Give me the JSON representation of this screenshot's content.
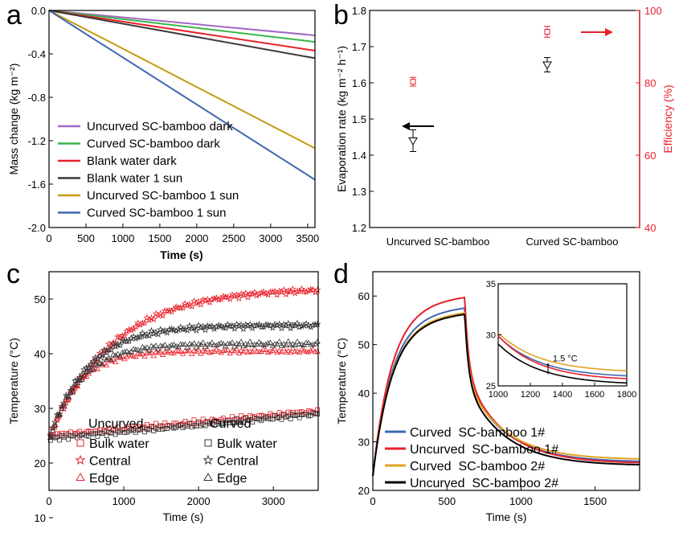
{
  "chart_data": [
    {
      "panel": "a",
      "type": "line",
      "xlabel": "Time (s)",
      "ylabel": "Mass change (kg m⁻²)",
      "xlim": [
        0,
        3600
      ],
      "ylim": [
        -2.0,
        0.0
      ],
      "xticks": [
        0,
        500,
        1000,
        1500,
        2000,
        2500,
        3000,
        3500
      ],
      "xtick_labels": [
        "0",
        "500",
        "1000",
        "1500",
        "2000",
        "2500",
        "3000",
        "3500"
      ],
      "yticks": [
        0,
        -0.4,
        -0.8,
        -1.2,
        -1.6,
        -2.0
      ],
      "ytick_labels": [
        "0.0",
        "-0.4",
        "-0.8",
        "-1.2",
        "-1.6",
        "-2.0"
      ],
      "legend_position": "bottom-left",
      "series": [
        {
          "name": "Uncurved SC-bamboo dark",
          "color": "#a367c6",
          "x": [
            0,
            3600
          ],
          "y": [
            0,
            -0.23
          ]
        },
        {
          "name": "Curved SC-bamboo dark",
          "color": "#39b54a",
          "x": [
            0,
            3600
          ],
          "y": [
            0,
            -0.29
          ]
        },
        {
          "name": "Blank water dark",
          "color": "#e8202a",
          "x": [
            0,
            3600
          ],
          "y": [
            0,
            -0.37
          ]
        },
        {
          "name": "Blank water 1 sun",
          "color": "#3a3a3a",
          "x": [
            0,
            3600
          ],
          "y": [
            0,
            -0.44
          ]
        },
        {
          "name": "Uncurved SC-bamboo 1 sun",
          "color": "#c59a13",
          "x": [
            0,
            3600
          ],
          "y": [
            0,
            -1.27
          ]
        },
        {
          "name": "Curved SC-bamboo 1 sun",
          "color": "#3f68b1",
          "x": [
            0,
            3600
          ],
          "y": [
            0,
            -1.56
          ]
        }
      ]
    },
    {
      "panel": "b",
      "type": "scatter",
      "categories": [
        "Uncurved SC-bamboo",
        "Curved SC-bamboo"
      ],
      "ylabel": "Evaporation rate (kg m⁻² h⁻¹)",
      "ylabel_right": "Efficiency (%)",
      "ylim": [
        1.2,
        1.8
      ],
      "yticks_labels": [
        "1.2",
        "1.3",
        "1.4",
        "1.5",
        "1.6",
        "1.7",
        "1.8"
      ],
      "ylim_right": [
        40,
        100
      ],
      "yticks_right_labels": [
        "40",
        "60",
        "80",
        "100"
      ],
      "right_axis_color": "#e8202a",
      "evaporation_rate": {
        "values": [
          1.44,
          1.65
        ],
        "errors": [
          0.03,
          0.02
        ],
        "color": "#000000"
      },
      "efficiency": {
        "values": [
          80.3,
          94.1
        ],
        "errors": [
          1.2,
          1.5
        ],
        "color": "#e8202a"
      }
    },
    {
      "panel": "c",
      "type": "scatter",
      "xlabel": "Time (s)",
      "ylabel": "Temperature (°C)",
      "xlim": [
        0,
        3600
      ],
      "ylim": [
        15,
        55
      ],
      "xtick_labels": [
        "0",
        "1000",
        "2000",
        "3000"
      ],
      "ytick_labels": [
        "10",
        "20",
        "30",
        "40",
        "50"
      ],
      "legend_group_uncurved": "Uncurved",
      "legend_group_curved": "Curved",
      "series": [
        {
          "name": "Bulk water",
          "group": "Uncurved",
          "marker": "square",
          "color": "#e8202a",
          "t0": 25.0,
          "tmax": 29.5,
          "tau": 0,
          "linear": true
        },
        {
          "name": "Central",
          "group": "Uncurved",
          "marker": "star",
          "color": "#e8202a",
          "t0": 24.5,
          "tmax": 52.0,
          "tau": 850
        },
        {
          "name": "Edge",
          "group": "Uncurved",
          "marker": "triangle",
          "color": "#e8202a",
          "t0": 24.0,
          "tmax": 40.5,
          "tau": 380
        },
        {
          "name": "Bulk water",
          "group": "Curved",
          "marker": "square",
          "color": "#333333",
          "t0": 24.5,
          "tmax": 29.0,
          "tau": 0,
          "linear": true
        },
        {
          "name": "Central",
          "group": "Curved",
          "marker": "star",
          "color": "#333333",
          "t0": 24.5,
          "tmax": 45.2,
          "tau": 520
        },
        {
          "name": "Edge",
          "group": "Curved",
          "marker": "triangle",
          "color": "#333333",
          "t0": 24.0,
          "tmax": 41.8,
          "tau": 420
        }
      ]
    },
    {
      "panel": "d",
      "type": "line",
      "xlabel": "Time (s)",
      "ylabel": "Temperature (°C)",
      "xlim": [
        0,
        1800
      ],
      "ylim": [
        20,
        65
      ],
      "xtick_labels": [
        "0",
        "500",
        "1000",
        "1500"
      ],
      "ytick_labels": [
        "20",
        "30",
        "40",
        "50",
        "60"
      ],
      "switch_time": 620,
      "series": [
        {
          "name": "Curved  SC-bamboo 1#",
          "color": "#3f68b1",
          "peak": 57.8,
          "end": 26.6
        },
        {
          "name": "Uncurved  SC-bamboo 1#",
          "color": "#e8202a",
          "peak": 60.0,
          "end": 26.3
        },
        {
          "name": "Curved  SC-bamboo 2#",
          "color": "#e0a224",
          "peak": 56.8,
          "end": 27.1
        },
        {
          "name": "Uncurved  SC-bamboo 2#",
          "color": "#000000",
          "peak": 56.5,
          "end": 25.9
        }
      ],
      "inset": {
        "xlim": [
          1000,
          1800
        ],
        "ylim": [
          25,
          35
        ],
        "xtick_labels": [
          "1000",
          "1200",
          "1400",
          "1600",
          "1800"
        ],
        "ytick_labels": [
          "25",
          "30",
          "35"
        ],
        "annotation": "1.5 °C"
      }
    }
  ],
  "panel_labels": {
    "a": "a",
    "b": "b",
    "c": "c",
    "d": "d"
  }
}
